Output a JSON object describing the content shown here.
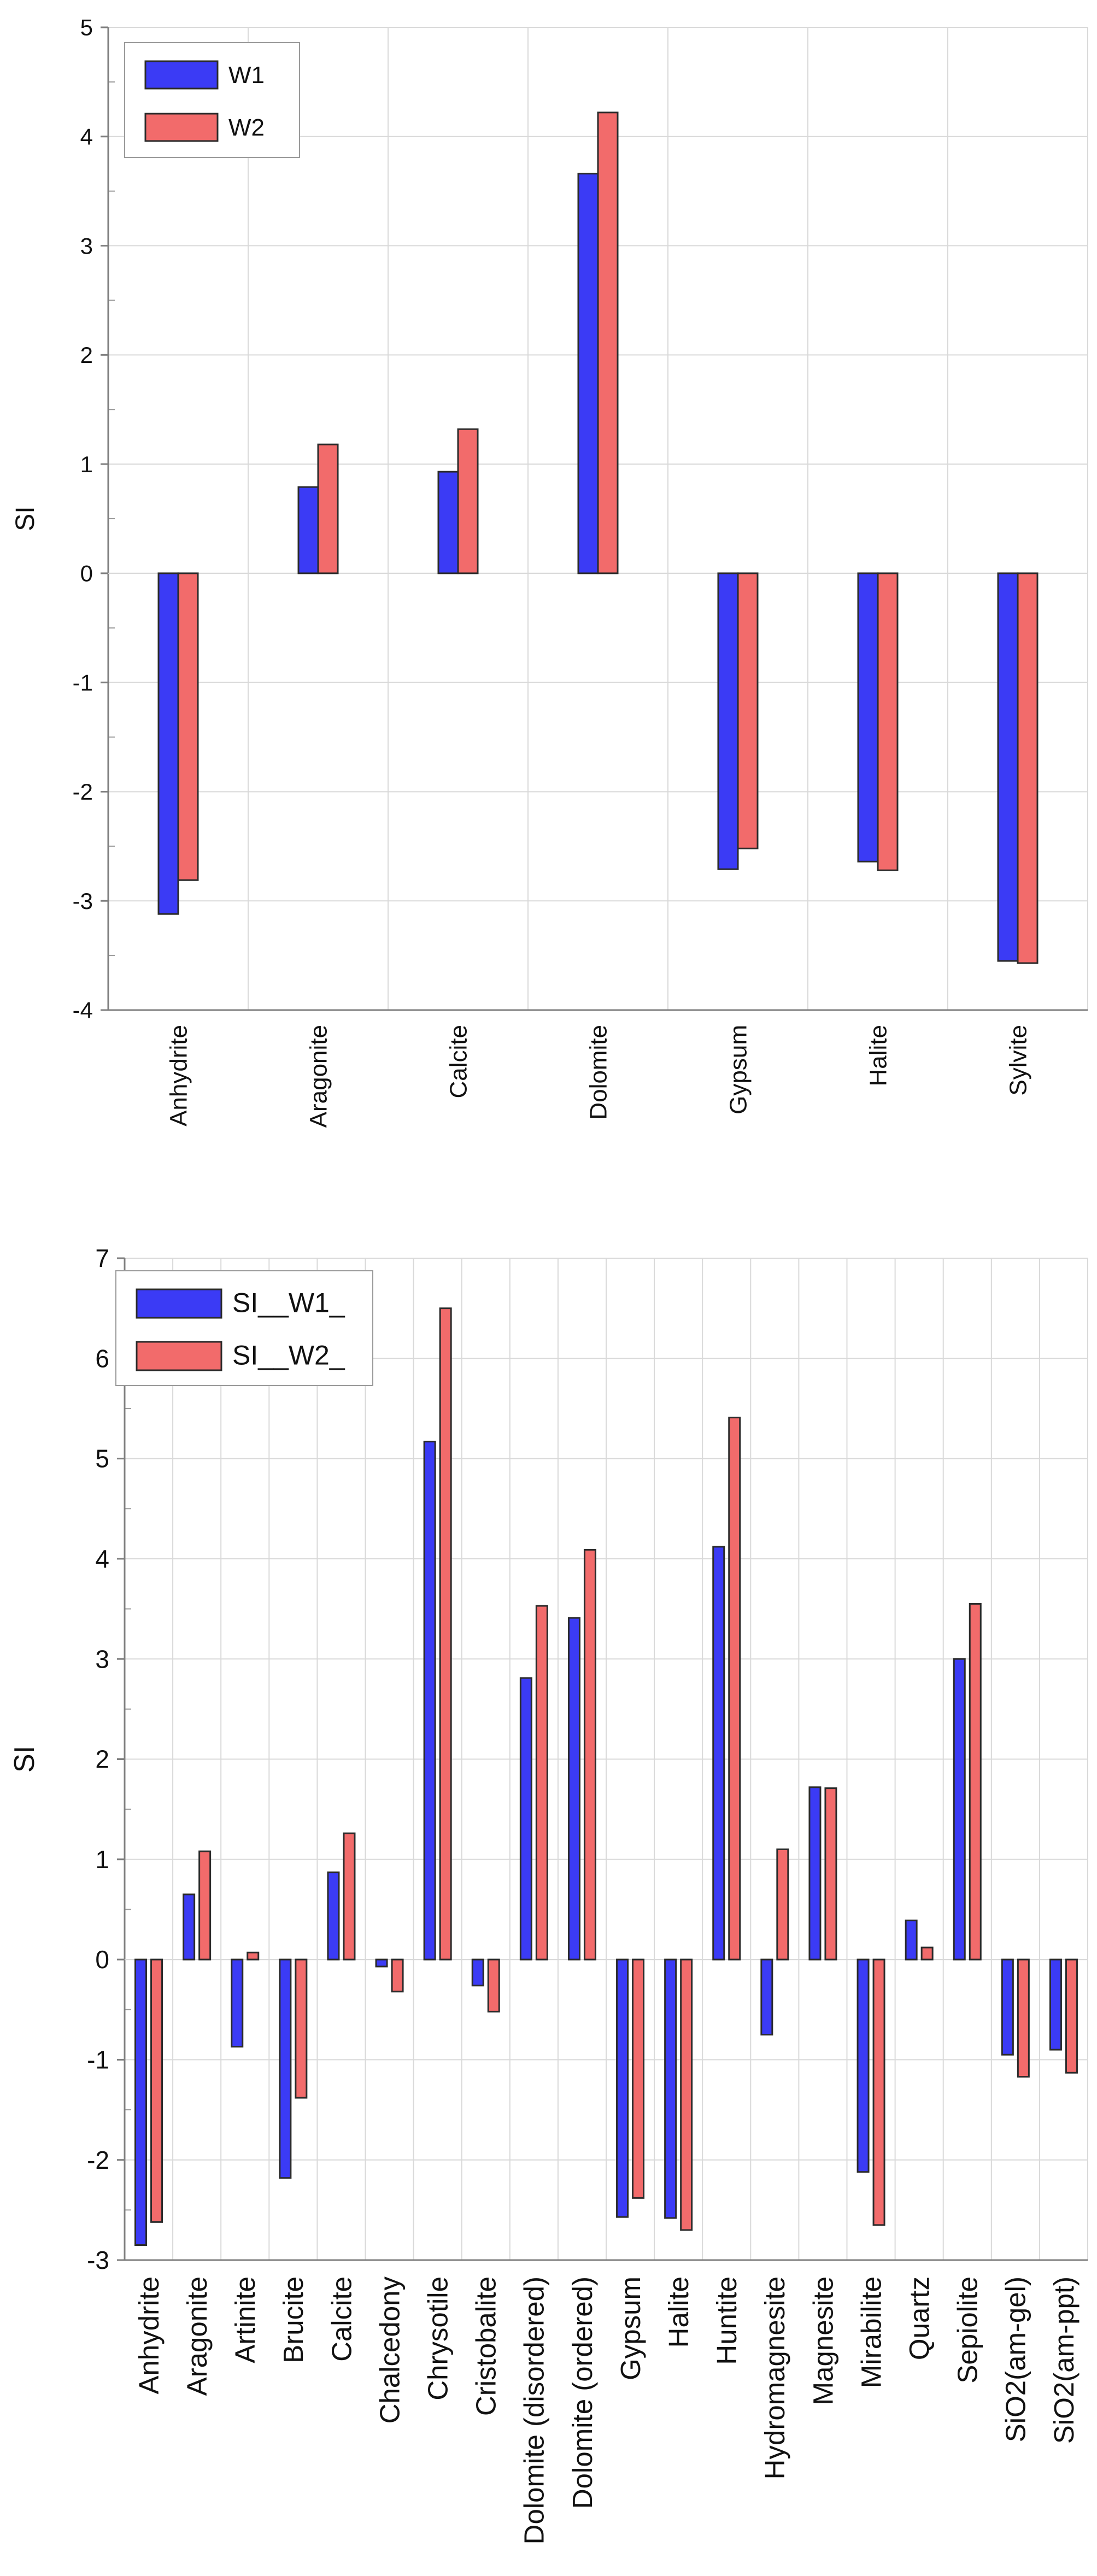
{
  "chart_data": [
    {
      "type": "bar",
      "title": "",
      "xlabel": "",
      "ylabel": "SI",
      "ylim": [
        -4,
        5
      ],
      "yticks": [
        5,
        4,
        3,
        2,
        1,
        0,
        -1,
        -2,
        -3,
        -4
      ],
      "ytick_labels": [
        "5",
        "4",
        "3",
        "2",
        "1",
        "0",
        "-1",
        "-2",
        "-3",
        "-4"
      ],
      "grid": true,
      "legend": "top-left",
      "categories": [
        "Anhydrite",
        "Aragonite",
        "Calcite",
        "Dolomite",
        "Gypsum",
        "Halite",
        "Sylvite"
      ],
      "series": [
        {
          "name": "W1",
          "color": "#3b3bf5",
          "values": [
            -3.12,
            0.79,
            0.93,
            3.66,
            -2.71,
            -2.64,
            -3.55
          ]
        },
        {
          "name": "W2",
          "color": "#f26b6b",
          "values": [
            -2.81,
            1.18,
            1.32,
            4.22,
            -2.52,
            -2.72,
            -3.57
          ]
        }
      ]
    },
    {
      "type": "bar",
      "title": "",
      "xlabel": "",
      "ylabel": "SI",
      "ylim": [
        -3,
        7
      ],
      "yticks": [
        7,
        6,
        5,
        4,
        3,
        2,
        1,
        0,
        -1,
        -2,
        -3
      ],
      "ytick_labels": [
        "7",
        "6",
        "5",
        "4",
        "3",
        "2",
        "1",
        "0",
        "-1",
        "-2",
        "-3"
      ],
      "grid": true,
      "legend": "top-left",
      "categories": [
        "Anhydrite",
        "Aragonite",
        "Artinite",
        "Brucite",
        "Calcite",
        "Chalcedony",
        "Chrysotile",
        "Cristobalite",
        "Dolomite (disordered)",
        "Dolomite (ordered)",
        "Gypsum",
        "Halite",
        "Huntite",
        "Hydromagnesite",
        "Magnesite",
        "Mirabilite",
        "Quartz",
        "Sepiolite",
        "SiO2(am-gel)",
        "SiO2(am-ppt)"
      ],
      "series": [
        {
          "name": "SI__W1_",
          "color": "#3b3bf5",
          "values": [
            -2.85,
            0.65,
            -0.87,
            -2.18,
            0.87,
            -0.07,
            5.17,
            -0.26,
            2.81,
            3.41,
            -2.57,
            -2.58,
            4.12,
            -0.75,
            1.72,
            -2.12,
            0.39,
            3.0,
            -0.95,
            -0.9
          ]
        },
        {
          "name": "SI__W2_",
          "color": "#f26b6b",
          "values": [
            -2.62,
            1.08,
            0.07,
            -1.38,
            1.26,
            -0.32,
            6.5,
            -0.52,
            3.53,
            4.09,
            -2.38,
            -2.7,
            5.41,
            1.1,
            1.71,
            -2.65,
            0.12,
            3.55,
            -1.17,
            -1.13
          ]
        }
      ]
    }
  ]
}
